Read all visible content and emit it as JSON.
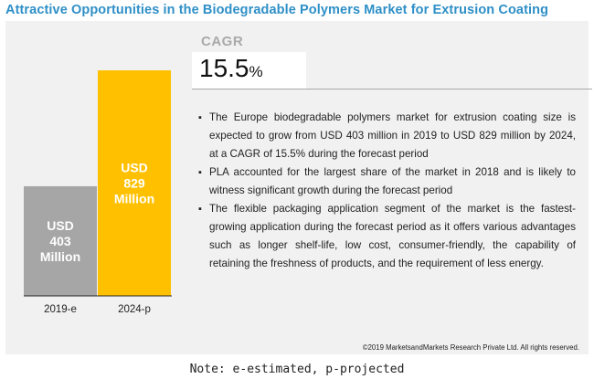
{
  "title": "Attractive Opportunities in the Biodegradable Polymers Market for Extrusion Coating",
  "cagr": {
    "label": "CAGR",
    "value": "15.5",
    "unit": "%"
  },
  "bullets": [
    "The Europe biodegradable polymers market for extrusion coating size is expected to grow from USD 403 million in 2019 to USD 829 million by 2024, at a CAGR of 15.5% during the forecast period",
    "PLA accounted for the largest share of the market in 2018 and is likely to witness significant growth during the forecast period",
    "The flexible packaging application segment of the market is the fastest-growing application during the forecast period as it offers various advantages such as longer shelf-life, low cost, consumer-friendly, the capability of retaining the freshness of products, and the requirement of less energy."
  ],
  "chart_data": {
    "type": "bar",
    "categories": [
      "2019-e",
      "2024-p"
    ],
    "values": [
      403,
      829
    ],
    "bar_labels": [
      [
        "USD",
        "403",
        "Million"
      ],
      [
        "USD",
        "829",
        "Million"
      ]
    ],
    "colors": [
      "#a6a6a6",
      "#ffc000"
    ],
    "ylim": [
      0,
      829
    ],
    "title": "",
    "xlabel": "",
    "ylabel": ""
  },
  "copyright": "©2019 MarketsandMarkets Research Private Ltd. All rights reserved.",
  "note": "Note: e-estimated, p-projected"
}
